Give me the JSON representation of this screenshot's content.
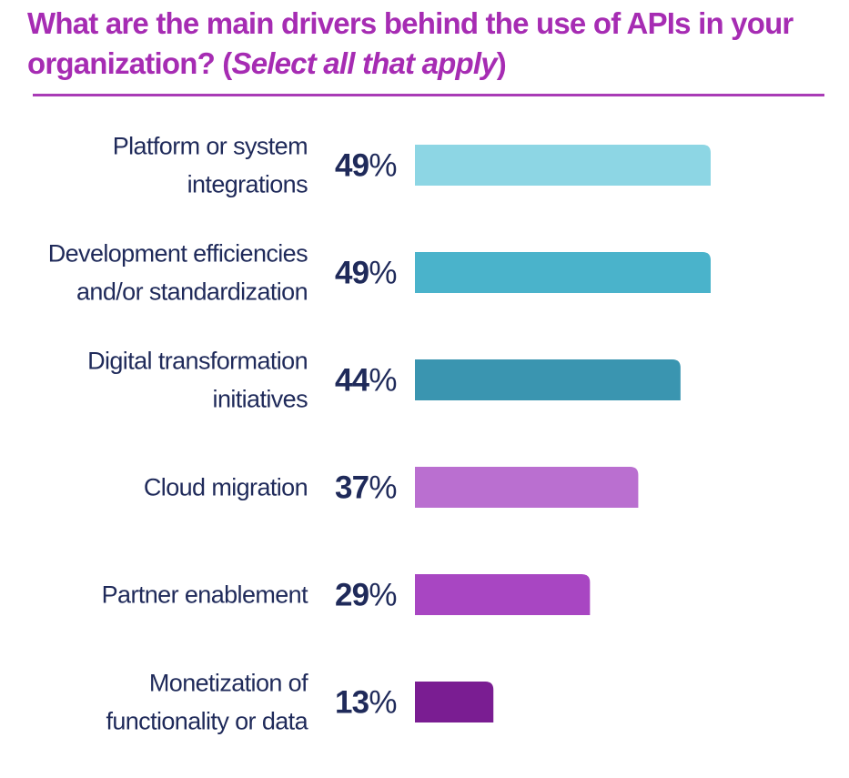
{
  "header": {
    "title_main": "What are the main drivers behind the use of APIs in your organization? (",
    "title_italic": "Select all that apply",
    "title_end": ")"
  },
  "colors": {
    "title": "#a62cb3",
    "rule": "#a93bb6",
    "text": "#1f2a5a"
  },
  "chart_data": {
    "type": "bar",
    "orientation": "horizontal",
    "title": "What are the main drivers behind the use of APIs in your organization? (Select all that apply)",
    "xlabel": "",
    "ylabel": "",
    "xlim": [
      0,
      60
    ],
    "value_suffix": "%",
    "grid": false,
    "legend": "none",
    "categories": [
      [
        "Platform or system",
        "integrations"
      ],
      [
        "Development efficiencies",
        "and/or standardization"
      ],
      [
        "Digital transformation",
        "initiatives"
      ],
      [
        "Cloud migration"
      ],
      [
        "Partner enablement"
      ],
      [
        "Monetization of",
        "functionality or data"
      ]
    ],
    "values": [
      49,
      49,
      44,
      37,
      29,
      13
    ],
    "colors": [
      "#8dd6e4",
      "#4ab3cb",
      "#3a95b0",
      "#ba6fd0",
      "#a846c2",
      "#7a1d92"
    ]
  }
}
